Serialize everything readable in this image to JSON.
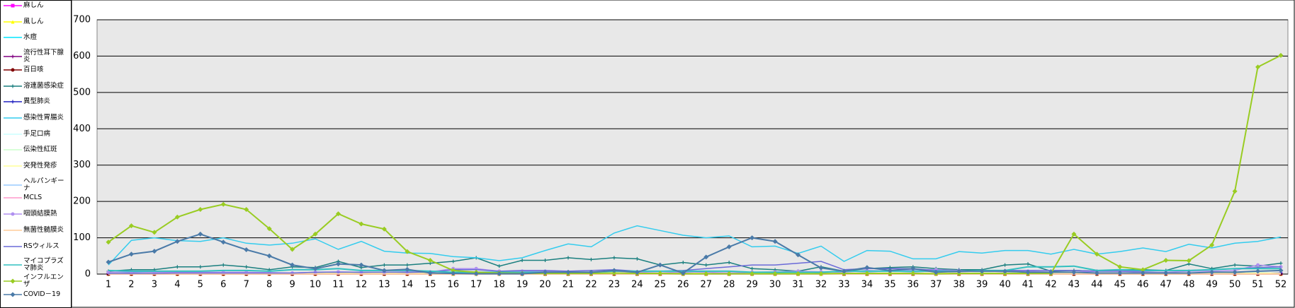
{
  "chart_data": {
    "type": "line",
    "categories": [
      "1",
      "2",
      "3",
      "4",
      "5",
      "6",
      "7",
      "8",
      "9",
      "10",
      "11",
      "12",
      "13",
      "14",
      "15",
      "16",
      "17",
      "18",
      "19",
      "20",
      "21",
      "22",
      "23",
      "24",
      "25",
      "26",
      "27",
      "28",
      "29",
      "30",
      "31",
      "32",
      "33",
      "34",
      "35",
      "36",
      "37",
      "38",
      "39",
      "40",
      "41",
      "42",
      "43",
      "44",
      "45",
      "46",
      "47",
      "48",
      "49",
      "50",
      "51",
      "52"
    ],
    "ylim": [
      0,
      700
    ],
    "yticks": [
      0,
      100,
      200,
      300,
      400,
      500,
      600,
      700
    ],
    "grid": true,
    "series": [
      {
        "name": "麻しん",
        "color": "#ff00ff",
        "marker": "square",
        "values": [
          0,
          0,
          0,
          0,
          0,
          0,
          0,
          0,
          0,
          0,
          0,
          0,
          0,
          0,
          0,
          0,
          0,
          0,
          0,
          0,
          0,
          0,
          0,
          0,
          0,
          0,
          0,
          0,
          0,
          0,
          0,
          0,
          0,
          0,
          0,
          0,
          0,
          0,
          0,
          0,
          0,
          0,
          0,
          0,
          0,
          0,
          0,
          0,
          0,
          0,
          0,
          0
        ]
      },
      {
        "name": "風しん",
        "color": "#ffff00",
        "marker": "triangle",
        "values": [
          0,
          0,
          0,
          0,
          0,
          0,
          0,
          0,
          0,
          0,
          0,
          0,
          0,
          0,
          0,
          0,
          0,
          0,
          0,
          0,
          0,
          0,
          0,
          0,
          0,
          0,
          0,
          0,
          0,
          0,
          0,
          0,
          0,
          0,
          0,
          0,
          0,
          0,
          0,
          0,
          0,
          0,
          0,
          0,
          0,
          0,
          0,
          0,
          0,
          0,
          0,
          0
        ]
      },
      {
        "name": "水痘",
        "color": "#00e5ff",
        "marker": "dash",
        "values": [
          5,
          3,
          4,
          3,
          4,
          3,
          4,
          3,
          2,
          3,
          4,
          3,
          2,
          3,
          2,
          3,
          2,
          2,
          3,
          2,
          2,
          3,
          2,
          3,
          2,
          2,
          3,
          2,
          3,
          2,
          2,
          3,
          2,
          3,
          2,
          3,
          2,
          2,
          3,
          2,
          3,
          2,
          3,
          2,
          3,
          2,
          3,
          2,
          3,
          2,
          3,
          2
        ]
      },
      {
        "name": "流行性耳下腺炎",
        "color": "#800080",
        "marker": "plus",
        "values": [
          1,
          1,
          1,
          1,
          0,
          1,
          1,
          0,
          1,
          1,
          0,
          1,
          1,
          0,
          1,
          1,
          0,
          1,
          1,
          0,
          1,
          1,
          0,
          1,
          1,
          0,
          1,
          1,
          0,
          1,
          1,
          0,
          1,
          1,
          0,
          1,
          1,
          0,
          1,
          1,
          0,
          1,
          1,
          0,
          1,
          1,
          0,
          1,
          1,
          0,
          1,
          1
        ]
      },
      {
        "name": "百日咳",
        "color": "#800000",
        "marker": "circle",
        "values": [
          0,
          0,
          0,
          0,
          0,
          0,
          0,
          0,
          0,
          0,
          0,
          0,
          0,
          0,
          0,
          1,
          2,
          1,
          0,
          0,
          0,
          0,
          0,
          0,
          0,
          0,
          0,
          0,
          0,
          0,
          0,
          1,
          0,
          0,
          0,
          0,
          0,
          0,
          0,
          0,
          0,
          0,
          0,
          0,
          0,
          0,
          0,
          0,
          0,
          0,
          0,
          0
        ]
      },
      {
        "name": "溶連菌感染症",
        "color": "#1a7f7f",
        "marker": "plus",
        "values": [
          8,
          12,
          12,
          20,
          20,
          25,
          20,
          12,
          20,
          18,
          35,
          18,
          25,
          25,
          30,
          35,
          45,
          22,
          38,
          38,
          45,
          40,
          45,
          42,
          25,
          32,
          25,
          32,
          15,
          12,
          8,
          20,
          8,
          15,
          18,
          20,
          15,
          12,
          12,
          25,
          28,
          8,
          10,
          8,
          12,
          12,
          10,
          28,
          15,
          25,
          22,
          30
        ]
      },
      {
        "name": "異型肺炎",
        "color": "#2020c0",
        "marker": "plus",
        "values": [
          2,
          3,
          2,
          3,
          2,
          3,
          2,
          3,
          2,
          3,
          2,
          3,
          2,
          3,
          2,
          3,
          2,
          3,
          2,
          3,
          2,
          3,
          2,
          3,
          2,
          3,
          2,
          3,
          2,
          3,
          2,
          3,
          2,
          3,
          2,
          3,
          2,
          3,
          2,
          3,
          2,
          3,
          2,
          3,
          2,
          3,
          2,
          3,
          2,
          3,
          2,
          3
        ]
      },
      {
        "name": "感染性胃腸炎",
        "color": "#33ccee",
        "marker": "dash",
        "values": [
          25,
          93,
          100,
          92,
          90,
          100,
          85,
          80,
          85,
          97,
          68,
          90,
          63,
          58,
          57,
          48,
          45,
          37,
          45,
          65,
          83,
          75,
          113,
          133,
          120,
          107,
          100,
          105,
          75,
          77,
          57,
          77,
          35,
          65,
          63,
          42,
          42,
          62,
          58,
          65,
          65,
          55,
          68,
          55,
          62,
          72,
          62,
          82,
          72,
          85,
          90,
          102
        ]
      },
      {
        "name": "手足口病",
        "color": "#ccffff",
        "marker": "dash",
        "values": [
          1,
          1,
          1,
          1,
          1,
          1,
          1,
          1,
          1,
          1,
          1,
          1,
          1,
          1,
          1,
          1,
          1,
          1,
          1,
          1,
          1,
          1,
          1,
          1,
          1,
          1,
          1,
          1,
          1,
          1,
          1,
          1,
          1,
          1,
          1,
          1,
          1,
          1,
          1,
          1,
          1,
          1,
          1,
          1,
          1,
          1,
          1,
          1,
          1,
          1,
          1,
          1
        ]
      },
      {
        "name": "伝染性紅斑",
        "color": "#ccffcc",
        "marker": "dash",
        "values": [
          0,
          0,
          0,
          0,
          0,
          0,
          0,
          0,
          0,
          0,
          0,
          0,
          0,
          0,
          0,
          0,
          0,
          0,
          0,
          0,
          0,
          0,
          0,
          0,
          0,
          0,
          0,
          0,
          0,
          0,
          0,
          0,
          0,
          0,
          0,
          0,
          0,
          0,
          0,
          0,
          0,
          0,
          0,
          0,
          0,
          0,
          0,
          0,
          0,
          0,
          0,
          0
        ]
      },
      {
        "name": "突発性発疹",
        "color": "#ffff99",
        "marker": "dash",
        "values": [
          3,
          2,
          3,
          2,
          3,
          2,
          3,
          2,
          3,
          2,
          3,
          2,
          3,
          2,
          3,
          2,
          3,
          2,
          3,
          2,
          3,
          2,
          3,
          2,
          3,
          2,
          3,
          2,
          3,
          2,
          3,
          2,
          3,
          2,
          3,
          2,
          3,
          2,
          3,
          2,
          3,
          2,
          3,
          2,
          3,
          2,
          3,
          2,
          3,
          2,
          3,
          2
        ]
      },
      {
        "name": "ヘルパンギーナ",
        "color": "#99ccff",
        "marker": "dash",
        "values": [
          0,
          0,
          0,
          0,
          0,
          0,
          0,
          0,
          0,
          0,
          0,
          0,
          0,
          0,
          0,
          0,
          0,
          0,
          0,
          0,
          0,
          0,
          0,
          0,
          0,
          0,
          0,
          0,
          0,
          0,
          0,
          0,
          0,
          0,
          0,
          0,
          0,
          0,
          0,
          0,
          0,
          0,
          0,
          0,
          0,
          0,
          0,
          0,
          0,
          0,
          0,
          0
        ]
      },
      {
        "name": "MCLS",
        "color": "#ff99cc",
        "marker": "dash",
        "values": [
          0,
          0,
          0,
          0,
          0,
          0,
          0,
          0,
          0,
          0,
          0,
          0,
          0,
          0,
          0,
          0,
          0,
          0,
          0,
          0,
          0,
          0,
          0,
          0,
          0,
          0,
          0,
          0,
          0,
          0,
          0,
          0,
          0,
          0,
          0,
          0,
          0,
          0,
          0,
          0,
          0,
          0,
          0,
          0,
          0,
          0,
          0,
          0,
          0,
          0,
          0,
          0
        ]
      },
      {
        "name": "咽頭結膜熱",
        "color": "#b090f0",
        "marker": "circle",
        "values": [
          5,
          6,
          5,
          5,
          5,
          5,
          5,
          4,
          3,
          5,
          6,
          5,
          5,
          6,
          6,
          15,
          15,
          8,
          8,
          8,
          6,
          5,
          8,
          5,
          3,
          6,
          5,
          3,
          5,
          6,
          8,
          6,
          5,
          10,
          8,
          12,
          12,
          10,
          8,
          8,
          8,
          5,
          5,
          8,
          8,
          5,
          5,
          8,
          8,
          10,
          25,
          20
        ]
      },
      {
        "name": "無菌性髄膜炎",
        "color": "#ffcc99",
        "marker": "dash",
        "values": [
          0,
          0,
          0,
          0,
          0,
          0,
          0,
          0,
          0,
          0,
          0,
          0,
          0,
          0,
          0,
          0,
          0,
          0,
          0,
          0,
          0,
          0,
          0,
          0,
          0,
          0,
          0,
          0,
          0,
          0,
          0,
          0,
          0,
          0,
          0,
          0,
          0,
          0,
          0,
          0,
          0,
          0,
          0,
          0,
          0,
          0,
          0,
          0,
          0,
          0,
          0,
          0
        ]
      },
      {
        "name": "RSウィルス",
        "color": "#6a6ad8",
        "marker": "dash",
        "values": [
          2,
          2,
          2,
          3,
          3,
          3,
          3,
          3,
          3,
          5,
          5,
          5,
          5,
          5,
          5,
          12,
          12,
          8,
          10,
          10,
          8,
          10,
          12,
          8,
          8,
          10,
          15,
          20,
          25,
          25,
          30,
          35,
          12,
          15,
          15,
          15,
          10,
          8,
          8,
          10,
          10,
          10,
          10,
          8,
          8,
          8,
          10,
          10,
          12,
          15,
          18,
          20
        ]
      },
      {
        "name": "マイコプラズマ肺炎",
        "color": "#30c0c0",
        "marker": "dash",
        "values": [
          10,
          8,
          8,
          8,
          8,
          10,
          10,
          8,
          12,
          12,
          15,
          10,
          10,
          10,
          8,
          5,
          5,
          5,
          5,
          5,
          5,
          5,
          8,
          8,
          8,
          8,
          8,
          8,
          5,
          5,
          5,
          5,
          8,
          8,
          8,
          8,
          8,
          8,
          10,
          10,
          20,
          20,
          22,
          10,
          12,
          10,
          10,
          10,
          12,
          15,
          15,
          15
        ]
      },
      {
        "name": "インフルエンザ",
        "color": "#99cc22",
        "marker": "diamond",
        "values": [
          88,
          133,
          115,
          157,
          178,
          192,
          178,
          125,
          68,
          110,
          166,
          138,
          124,
          62,
          38,
          10,
          5,
          3,
          2,
          2,
          2,
          2,
          3,
          2,
          2,
          1,
          1,
          1,
          1,
          1,
          1,
          1,
          2,
          2,
          2,
          2,
          1,
          2,
          2,
          2,
          2,
          2,
          110,
          55,
          20,
          12,
          38,
          37,
          80,
          228,
          570,
          602
        ]
      },
      {
        "name": "COVID－19",
        "color": "#4a7aa8",
        "marker": "diamond",
        "values": [
          33,
          55,
          63,
          90,
          110,
          88,
          67,
          50,
          25,
          15,
          28,
          25,
          10,
          13,
          3,
          2,
          1,
          1,
          1,
          5,
          5,
          5,
          10,
          5,
          25,
          3,
          47,
          75,
          100,
          90,
          53,
          17,
          8,
          18,
          10,
          15,
          5,
          8,
          8,
          8,
          5,
          5,
          5,
          3,
          3,
          3,
          3,
          3,
          5,
          5,
          8,
          10
        ]
      }
    ]
  }
}
